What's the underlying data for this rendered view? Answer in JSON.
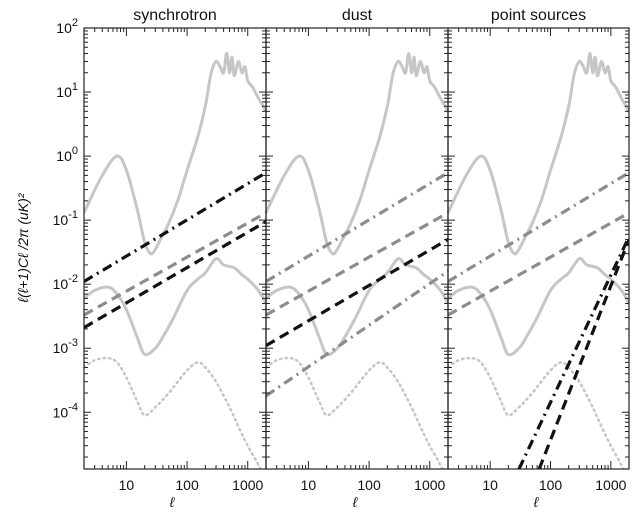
{
  "chart_data": {
    "type": "line",
    "xlabel": "ℓ",
    "ylabel": "ℓ(ℓ+1)Cℓ /2π (uK)²",
    "xscale": "log",
    "yscale": "log",
    "xlim": [
      2,
      2000
    ],
    "ylim": [
      1.3e-05,
      100
    ],
    "x_ticks": [
      10,
      100,
      1000
    ],
    "x_tick_labels": [
      "10",
      "100",
      "1000"
    ],
    "y_ticks": [
      0.0001,
      0.001,
      0.01,
      0.1,
      1,
      10,
      100
    ],
    "y_tick_labels": [
      {
        "base": "10",
        "exp": "-4"
      },
      {
        "base": "10",
        "exp": "-3"
      },
      {
        "base": "10",
        "exp": "-2"
      },
      {
        "base": "10",
        "exp": "-1"
      },
      {
        "base": "10",
        "exp": "0"
      },
      {
        "base": "10",
        "exp": "1"
      },
      {
        "base": "10",
        "exp": "2"
      }
    ],
    "colors": {
      "cmb": "#c6c6c6",
      "selected": "#111111",
      "other": "#8c8c8c"
    },
    "cmb_curves": {
      "tt_solid": {
        "x": [
          2,
          4,
          7,
          10,
          15,
          20,
          25,
          30,
          40,
          50,
          70,
          100,
          150,
          200,
          220,
          250,
          300,
          350,
          400,
          450,
          500,
          550,
          600,
          700,
          800,
          900,
          1000,
          1200,
          1500,
          2000
        ],
        "y": [
          0.13,
          0.5,
          1.0,
          0.6,
          0.15,
          0.045,
          0.03,
          0.035,
          0.06,
          0.09,
          0.2,
          0.6,
          2.0,
          6.0,
          10,
          20,
          30,
          25,
          20,
          40,
          20,
          35,
          18,
          30,
          20,
          25,
          15,
          12,
          8,
          5
        ]
      },
      "ee_solid": {
        "x": [
          2,
          3,
          5,
          7,
          10,
          15,
          20,
          30,
          40,
          60,
          100,
          150,
          200,
          300,
          400,
          600,
          800,
          1000,
          1500,
          2000
        ],
        "y": [
          0.006,
          0.008,
          0.009,
          0.007,
          0.004,
          0.0015,
          0.0008,
          0.001,
          0.0015,
          0.003,
          0.008,
          0.012,
          0.015,
          0.025,
          0.02,
          0.018,
          0.014,
          0.012,
          0.008,
          0.005
        ]
      },
      "bb_dotted": {
        "x": [
          2,
          3,
          5,
          7,
          10,
          15,
          20,
          30,
          50,
          100,
          150,
          200,
          300,
          500,
          700,
          1000,
          1500,
          2000
        ],
        "y": [
          0.0005,
          0.00065,
          0.0007,
          0.0006,
          0.00035,
          0.00015,
          9e-05,
          0.00012,
          0.0002,
          0.00045,
          0.0006,
          0.0005,
          0.0003,
          0.00012,
          6e-05,
          3e-05,
          1.5e-05,
          8e-06
        ]
      }
    },
    "panels": [
      {
        "title": "synchrotron",
        "series": [
          {
            "style": "dashdot",
            "role": "selected",
            "x": [
              2,
              2000
            ],
            "y": [
              0.011,
              0.55
            ]
          },
          {
            "style": "dashed",
            "role": "other",
            "x": [
              2,
              2000
            ],
            "y": [
              0.0033,
              0.13
            ]
          },
          {
            "style": "dashed",
            "role": "selected",
            "x": [
              2,
              2000
            ],
            "y": [
              0.0021,
              0.095
            ]
          }
        ]
      },
      {
        "title": "dust",
        "series": [
          {
            "style": "dashdot",
            "role": "other",
            "x": [
              2,
              2000
            ],
            "y": [
              0.011,
              0.55
            ]
          },
          {
            "style": "dashed",
            "role": "other",
            "x": [
              2,
              2000
            ],
            "y": [
              0.0033,
              0.13
            ]
          },
          {
            "style": "dashed",
            "role": "selected",
            "x": [
              2,
              2000
            ],
            "y": [
              0.0011,
              0.05
            ]
          },
          {
            "style": "dashdot",
            "role": "other",
            "x": [
              2,
              2000
            ],
            "y": [
              0.00018,
              0.016
            ]
          }
        ]
      },
      {
        "title": "point sources",
        "series": [
          {
            "style": "dashdot",
            "role": "other",
            "x": [
              2,
              2000
            ],
            "y": [
              0.011,
              0.55
            ]
          },
          {
            "style": "dashed",
            "role": "other",
            "x": [
              2,
              2000
            ],
            "y": [
              0.0033,
              0.13
            ]
          },
          {
            "style": "dashdot",
            "role": "selected",
            "x": [
              30,
              2000
            ],
            "y": [
              1.3e-05,
              0.055
            ]
          },
          {
            "style": "dashed",
            "role": "selected",
            "x": [
              65,
              2000
            ],
            "y": [
              1.3e-05,
              0.05
            ]
          }
        ]
      }
    ]
  }
}
